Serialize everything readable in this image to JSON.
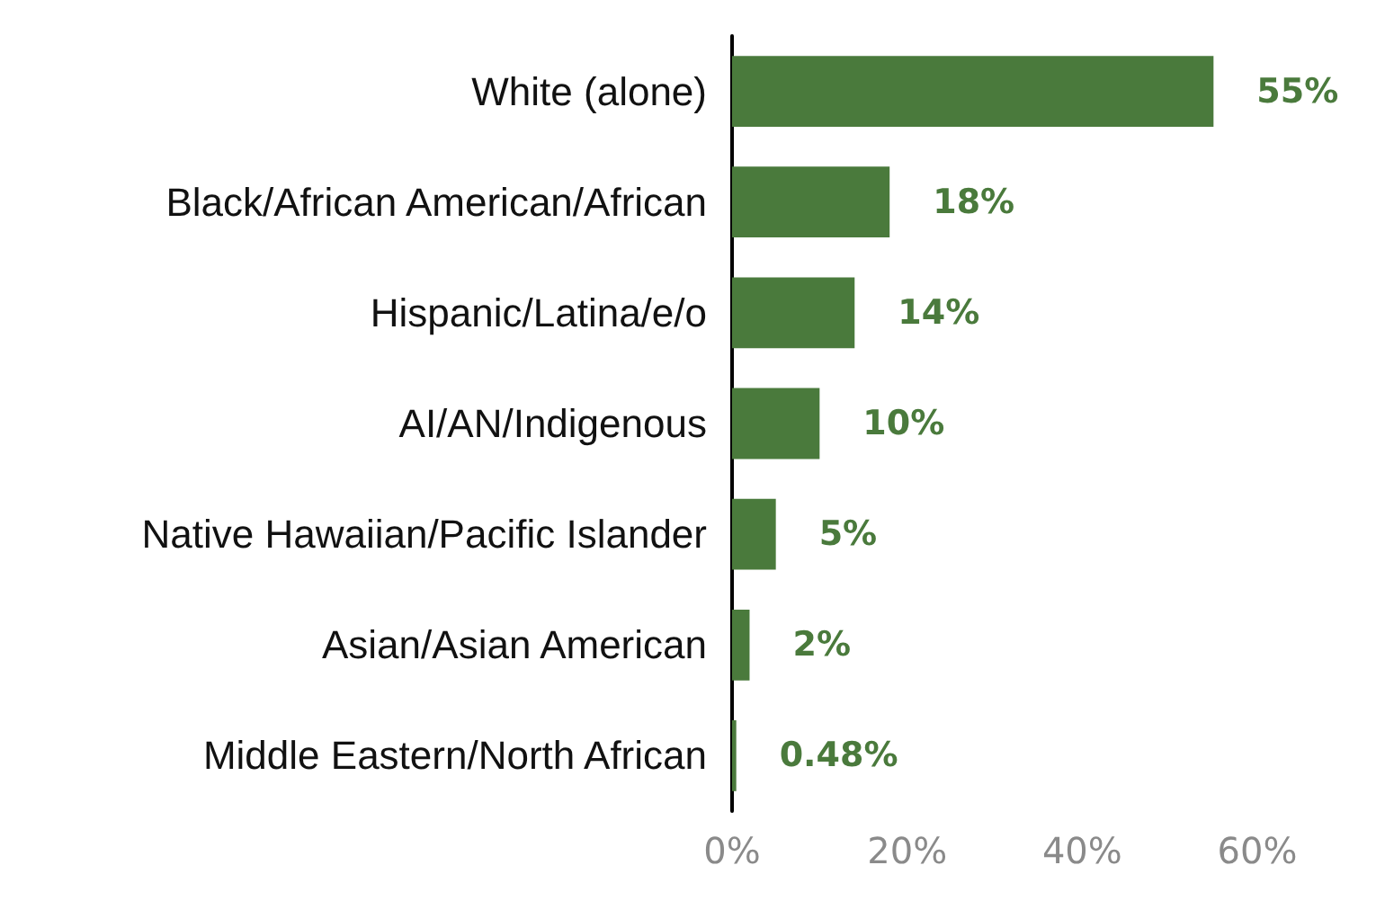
{
  "chart_data": {
    "type": "bar",
    "orientation": "horizontal",
    "categories": [
      "White (alone)",
      "Black/African American/African",
      "Hispanic/Latina/e/o",
      "AI/AN/Indigenous",
      "Native Hawaiian/Pacific Islander",
      "Asian/Asian American",
      "Middle Eastern/North African"
    ],
    "values": [
      55,
      18,
      14,
      10,
      5,
      2,
      0.48
    ],
    "value_labels": [
      "55%",
      "18%",
      "14%",
      "10%",
      "5%",
      "2%",
      "0.48%"
    ],
    "color": "#4a7a3c",
    "xlim": [
      0,
      60
    ],
    "xticks": [
      {
        "value": 0,
        "label": "0%"
      },
      {
        "value": 20,
        "label": "20%"
      },
      {
        "value": 40,
        "label": "40%"
      },
      {
        "value": 60,
        "label": "60%"
      }
    ],
    "grid": false
  }
}
